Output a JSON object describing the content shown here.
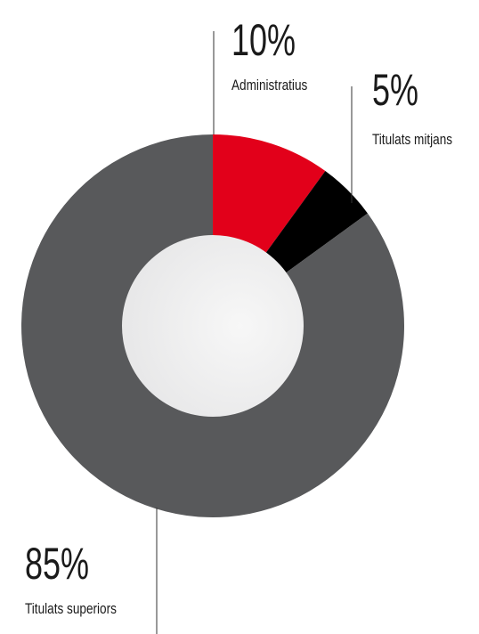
{
  "chart_data": {
    "type": "donut",
    "categories": [
      "Administratius",
      "Titulats mitjans",
      "Titulats superiors"
    ],
    "values": [
      10,
      5,
      85
    ],
    "value_labels": [
      "10%",
      "5%",
      "85%"
    ],
    "colors": [
      "#e2001a",
      "#000000",
      "#58595b"
    ]
  }
}
